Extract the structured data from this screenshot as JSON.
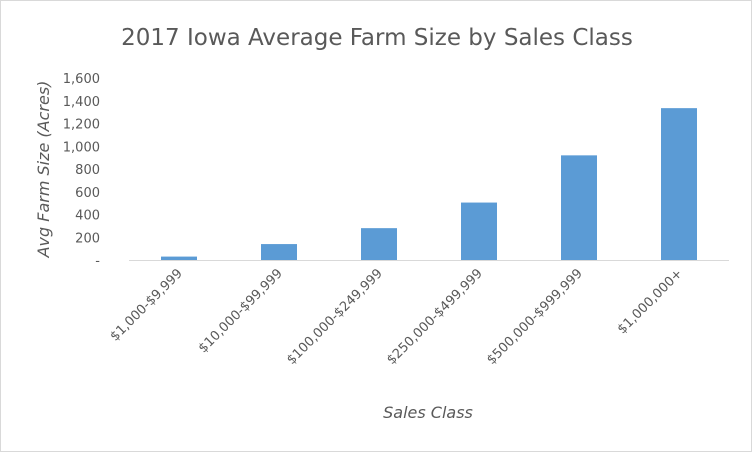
{
  "chart_data": {
    "type": "bar",
    "title": "2017 Iowa Average Farm Size by Sales Class",
    "xlabel": "Sales Class",
    "ylabel": "Avg Farm Size (Acres)",
    "categories": [
      "$1,000-$9,999",
      "$10,000-$99,999",
      "$100,000-$249,999",
      "$250,000-$499,999",
      "$500,000-$999,999",
      "$1,000,000+"
    ],
    "values": [
      30,
      140,
      280,
      505,
      920,
      1335
    ],
    "ylim": [
      0,
      1600
    ],
    "y_ticks": [
      0,
      200,
      400,
      600,
      800,
      1000,
      1200,
      1400,
      1600
    ],
    "y_tick_labels": [
      "-",
      "200",
      "400",
      "600",
      "800",
      "1,000",
      "1,200",
      "1,400",
      "1,600"
    ],
    "grid": false,
    "legend": "none",
    "bar_color": "#5b9bd5",
    "axis_color": "#d9d9d9",
    "text_color": "#595959"
  }
}
